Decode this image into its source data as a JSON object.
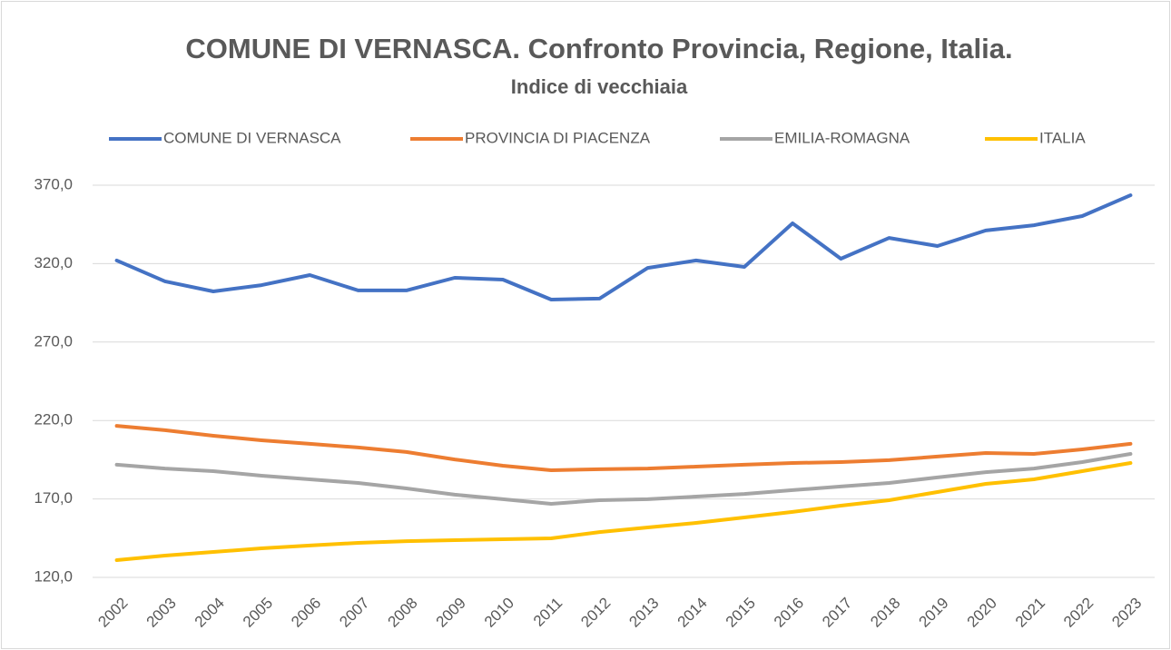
{
  "chart_data": {
    "type": "line",
    "title": "COMUNE DI VERNASCA. Confronto Provincia, Regione, Italia.",
    "subtitle": "Indice di vecchiaia",
    "categories": [
      "2002",
      "2003",
      "2004",
      "2005",
      "2006",
      "2007",
      "2008",
      "2009",
      "2010",
      "2011",
      "2012",
      "2013",
      "2014",
      "2015",
      "2016",
      "2017",
      "2018",
      "2019",
      "2020",
      "2021",
      "2022",
      "2023"
    ],
    "series": [
      {
        "name": "COMUNE DI VERNASCA",
        "color": "#4472c4",
        "values": [
          322,
          308.7,
          302.3,
          306.3,
          312.7,
          302.9,
          302.9,
          311,
          309.8,
          297.1,
          297.7,
          317.3,
          322,
          317.9,
          345.7,
          323.1,
          336.4,
          331.2,
          341.1,
          344.5,
          350.3,
          363.6
        ]
      },
      {
        "name": "PROVINCIA DI PIACENZA",
        "color": "#ed7d31",
        "values": [
          216.6,
          213.8,
          210.3,
          207.4,
          205.1,
          202.8,
          199.9,
          195.2,
          191.2,
          188.3,
          188.9,
          189.4,
          190.6,
          191.8,
          192.9,
          193.5,
          194.7,
          197,
          199.3,
          198.7,
          201.6,
          205.1
        ]
      },
      {
        "name": "EMILIA-ROMAGNA",
        "color": "#a5a5a5",
        "values": [
          191.8,
          189.4,
          187.7,
          184.8,
          182.5,
          180.2,
          176.7,
          172.7,
          169.8,
          166.9,
          169.2,
          169.8,
          171.5,
          173.2,
          175.6,
          177.9,
          180.2,
          183.7,
          187.1,
          189.4,
          193.5,
          198.7
        ]
      },
      {
        "name": "ITALIA",
        "color": "#ffc000",
        "values": [
          131,
          133.9,
          136.2,
          138.5,
          140.3,
          142,
          143.1,
          143.7,
          144.3,
          144.9,
          148.9,
          151.8,
          154.7,
          158.2,
          161.7,
          165.7,
          169.2,
          174.4,
          179.6,
          182.5,
          187.7,
          192.9
        ]
      }
    ],
    "ylim": [
      120,
      370
    ],
    "yticks": [
      {
        "value": 120,
        "label": "120,0"
      },
      {
        "value": 170,
        "label": "170,0"
      },
      {
        "value": 220,
        "label": "220,0"
      },
      {
        "value": 270,
        "label": "270,0"
      },
      {
        "value": 320,
        "label": "320,0"
      },
      {
        "value": 370,
        "label": "370,0"
      }
    ],
    "grid": true,
    "legend": "top"
  }
}
